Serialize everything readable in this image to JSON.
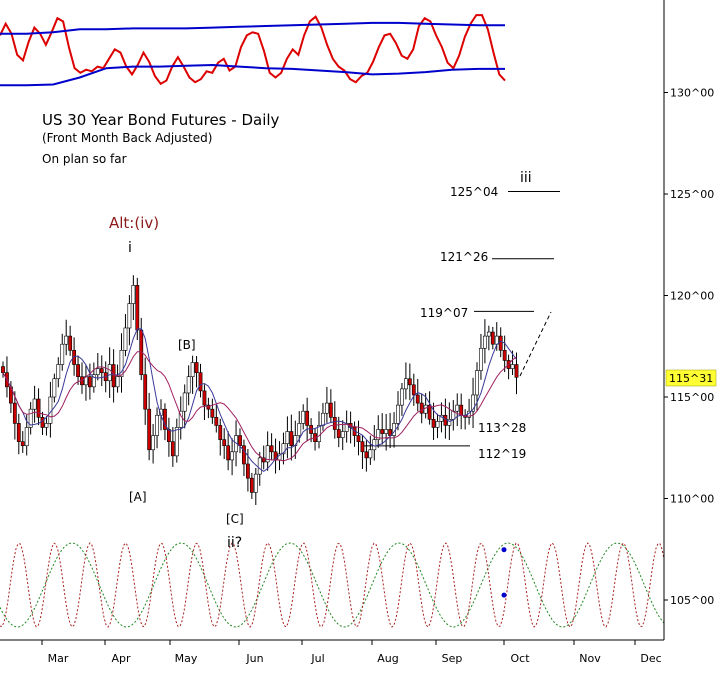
{
  "chart_data": {
    "type": "candlestick",
    "title": "US 30 Year Bond Futures - Daily",
    "subtitle": "(Front Month Back Adjusted)",
    "note": "On plan so far",
    "price_axis": {
      "ticks": [
        "130^00",
        "125^00",
        "120^00",
        "115^00",
        "110^00",
        "105^00"
      ],
      "tick_values": [
        130,
        125,
        120,
        115,
        110,
        105
      ],
      "current_price_label": "115^31",
      "current_price": 115.97,
      "label_color": "#ffff33"
    },
    "x_axis": {
      "ticks": [
        "Mar",
        "Apr",
        "May",
        "Jun",
        "Jul",
        "Aug",
        "Sep",
        "Oct",
        "Nov",
        "Dec"
      ]
    },
    "target_levels": [
      {
        "label": "125^04",
        "value": 125.125
      },
      {
        "label": "121^26",
        "value": 121.81
      },
      {
        "label": "119^07",
        "value": 119.22
      }
    ],
    "support_levels": [
      {
        "label": "113^28",
        "value": 113.875
      },
      {
        "label": "112^19",
        "value": 112.59
      }
    ],
    "wave_labels": [
      {
        "text": "Alt:(iv)",
        "color": "#8b1a1a"
      },
      {
        "text": "i"
      },
      {
        "text": "[B]"
      },
      {
        "text": "[A]"
      },
      {
        "text": "[C]"
      },
      {
        "text": "ii?"
      },
      {
        "text": "iii"
      }
    ],
    "colors": {
      "down_candle": "#cc0000",
      "up_candle": "#ffffff",
      "oscillator": "#dd0000",
      "bands": "#0000cc",
      "ma_fast": "#3a3a9a",
      "ma_slow": "#a02060",
      "cycle_long": "#228822",
      "cycle_short": "#aa2222",
      "marker": "#0000cc"
    },
    "closes": [
      116.2,
      115.5,
      114.7,
      113.7,
      112.8,
      112.6,
      113.5,
      114.4,
      114.9,
      114.0,
      113.5,
      113.7,
      115.0,
      115.9,
      116.6,
      117.6,
      118.0,
      117.3,
      116.6,
      116.0,
      115.6,
      116.0,
      115.5,
      116.1,
      116.4,
      116.2,
      115.8,
      116.6,
      115.5,
      116.0,
      117.3,
      118.4,
      119.6,
      120.5,
      118.3,
      116.1,
      114.4,
      112.4,
      113.1,
      114.1,
      114.4,
      113.4,
      112.8,
      112.1,
      113.5,
      114.3,
      115.2,
      116.0,
      116.7,
      116.2,
      115.3,
      114.6,
      114.4,
      114.0,
      113.6,
      112.9,
      112.6,
      111.9,
      112.3,
      113.1,
      112.6,
      111.7,
      111.0,
      110.3,
      111.2,
      112.0,
      111.8,
      112.6,
      112.3,
      111.9,
      112.2,
      112.7,
      113.3,
      112.6,
      113.1,
      113.7,
      114.3,
      113.6,
      113.2,
      112.8,
      113.6,
      114.2,
      114.7,
      114.0,
      113.4,
      113.0,
      113.3,
      113.7,
      113.5,
      113.1,
      112.8,
      112.3,
      112.0,
      112.4,
      112.9,
      113.4,
      113.2,
      113.4,
      113.1,
      113.7,
      114.6,
      115.4,
      115.9,
      115.6,
      115.1,
      114.7,
      114.2,
      114.6,
      113.9,
      113.5,
      113.8,
      114.1,
      113.6,
      113.9,
      114.3,
      114.6,
      114.1,
      114.0,
      114.3,
      115.1,
      116.3,
      117.4,
      118.0,
      118.2,
      117.6,
      118.0,
      117.3,
      116.8,
      116.4,
      116.6,
      115.97
    ],
    "oscillator_values": [
      0.7,
      0.85,
      0.72,
      0.45,
      0.38,
      0.62,
      0.8,
      0.72,
      0.58,
      0.74,
      0.92,
      0.88,
      0.55,
      0.28,
      0.22,
      0.26,
      0.24,
      0.3,
      0.28,
      0.4,
      0.52,
      0.48,
      0.3,
      0.2,
      0.32,
      0.48,
      0.36,
      0.18,
      0.08,
      0.12,
      0.3,
      0.42,
      0.3,
      0.16,
      0.1,
      0.14,
      0.24,
      0.22,
      0.35,
      0.4,
      0.25,
      0.3,
      0.55,
      0.7,
      0.74,
      0.72,
      0.5,
      0.22,
      0.16,
      0.22,
      0.4,
      0.52,
      0.45,
      0.7,
      0.88,
      0.94,
      0.8,
      0.58,
      0.4,
      0.3,
      0.25,
      0.14,
      0.1,
      0.18,
      0.22,
      0.36,
      0.55,
      0.7,
      0.72,
      0.6,
      0.44,
      0.4,
      0.52,
      0.82,
      0.92,
      0.88,
      0.7,
      0.55,
      0.35,
      0.28,
      0.44,
      0.68,
      0.85,
      0.96,
      0.96,
      0.78,
      0.48,
      0.2,
      0.12
    ],
    "upper_band": [
      0.72,
      0.72,
      0.74,
      0.78,
      0.78,
      0.79,
      0.79,
      0.79,
      0.8,
      0.81,
      0.82,
      0.83,
      0.84,
      0.85,
      0.86,
      0.86,
      0.85,
      0.84,
      0.83,
      0.83
    ],
    "lower_band": [
      0.06,
      0.06,
      0.07,
      0.16,
      0.28,
      0.3,
      0.3,
      0.31,
      0.32,
      0.3,
      0.28,
      0.27,
      0.25,
      0.23,
      0.2,
      0.21,
      0.23,
      0.26,
      0.27,
      0.27
    ],
    "cycles": {
      "long_period_days": 46,
      "short_period_days": 15,
      "markers": [
        0.92,
        0.38
      ]
    }
  }
}
